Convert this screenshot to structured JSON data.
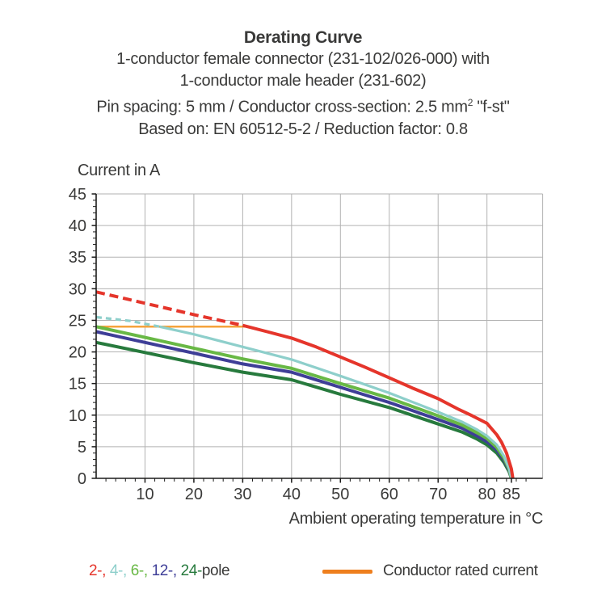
{
  "title": {
    "main": "Derating Curve",
    "line1": "1-conductor female connector (231-102/026-000) with",
    "line2": "1-conductor male header (231-602)",
    "line3_pre": "Pin spacing: 5 mm / Conductor cross-section: 2.5 mm",
    "line3_sup": "2",
    "line3_post": " \"f-st\"",
    "line4": "Based on: EN 60512-5-2 / Reduction factor: 0.8"
  },
  "legend": {
    "pole_segments": [
      {
        "name": "2-pole",
        "text": "2-,",
        "color": "#e5352b"
      },
      {
        "name": "4-pole",
        "text": "4-,",
        "color": "#8ecfcb"
      },
      {
        "name": "6-pole",
        "text": "6-,",
        "color": "#68b845"
      },
      {
        "name": "12-pole",
        "text": "12-,",
        "color": "#3e3e97"
      },
      {
        "name": "24-pole",
        "text": "24-",
        "color": "#277a3d"
      }
    ],
    "pole_suffix": "pole",
    "rated_label": "Conductor rated current",
    "rated_swatch_color": "#ee7f1e"
  },
  "colors": {
    "text": "#3a3a39",
    "grid": "#b2b2b2",
    "axis": "#1c1c1b"
  },
  "chart_data": {
    "type": "line",
    "title": "Derating Curve",
    "xlabel": "Ambient operating temperature in °C",
    "ylabel": "Current in A",
    "xlim": [
      0,
      91.4
    ],
    "ylim": [
      0,
      45
    ],
    "xticks_major": [
      10,
      20,
      30,
      40,
      50,
      60,
      70,
      80,
      85
    ],
    "yticks_major": [
      0,
      5,
      10,
      15,
      20,
      25,
      30,
      35,
      40,
      45
    ],
    "x_minor_step": 2,
    "y_minor_step": 1,
    "grid": true,
    "legend_position": "bottom",
    "series": [
      {
        "name": "conductor-rated-current",
        "color": "#f5a33c",
        "width": 2.5,
        "points": [
          [
            0,
            24
          ],
          [
            31,
            24
          ]
        ]
      },
      {
        "name": "24-pole",
        "color": "#277a3d",
        "width": 4,
        "points": [
          [
            0,
            21.5
          ],
          [
            10,
            19.9
          ],
          [
            20,
            18.3
          ],
          [
            30,
            16.8
          ],
          [
            40,
            15.6
          ],
          [
            50,
            13.3
          ],
          [
            60,
            11.2
          ],
          [
            70,
            8.6
          ],
          [
            75,
            7.3
          ],
          [
            78,
            6.2
          ],
          [
            80,
            5.3
          ],
          [
            82,
            4.0
          ],
          [
            83.5,
            2.5
          ],
          [
            84.5,
            1.1
          ],
          [
            85,
            0
          ]
        ]
      },
      {
        "name": "12-pole",
        "color": "#3e3e97",
        "width": 4,
        "points": [
          [
            0,
            23.2
          ],
          [
            10,
            21.5
          ],
          [
            20,
            19.8
          ],
          [
            30,
            18.1
          ],
          [
            40,
            16.8
          ],
          [
            50,
            14.4
          ],
          [
            60,
            12.0
          ],
          [
            70,
            9.3
          ],
          [
            75,
            7.9
          ],
          [
            78,
            6.7
          ],
          [
            80,
            5.8
          ],
          [
            82,
            4.5
          ],
          [
            83.5,
            2.9
          ],
          [
            84.5,
            1.3
          ],
          [
            85,
            0
          ]
        ]
      },
      {
        "name": "6-pole",
        "color": "#68b845",
        "width": 4,
        "points": [
          [
            0,
            24.0
          ],
          [
            10,
            22.3
          ],
          [
            20,
            20.6
          ],
          [
            30,
            18.9
          ],
          [
            40,
            17.4
          ],
          [
            50,
            15.0
          ],
          [
            60,
            12.7
          ],
          [
            70,
            9.9
          ],
          [
            75,
            8.4
          ],
          [
            78,
            7.2
          ],
          [
            80,
            6.3
          ],
          [
            82,
            4.9
          ],
          [
            83.5,
            3.2
          ],
          [
            84.5,
            1.5
          ],
          [
            85,
            0
          ]
        ]
      },
      {
        "name": "4-pole",
        "color": "#8ecfcb",
        "width": 3.2,
        "dashed_points": [
          [
            0,
            25.5
          ],
          [
            7,
            24.9
          ],
          [
            13,
            24.0
          ]
        ],
        "dash_pattern": "7 5",
        "points": [
          [
            13,
            24.0
          ],
          [
            20,
            22.8
          ],
          [
            30,
            20.8
          ],
          [
            40,
            18.8
          ],
          [
            50,
            16.2
          ],
          [
            60,
            13.5
          ],
          [
            70,
            10.5
          ],
          [
            75,
            8.9
          ],
          [
            78,
            7.7
          ],
          [
            80,
            6.7
          ],
          [
            82,
            5.3
          ],
          [
            83.5,
            3.5
          ],
          [
            84.5,
            1.6
          ],
          [
            85,
            0
          ]
        ]
      },
      {
        "name": "2-pole",
        "color": "#e5352b",
        "width": 4,
        "dashed_points": [
          [
            0,
            29.5
          ],
          [
            10,
            27.7
          ],
          [
            20,
            25.9
          ],
          [
            30,
            24.2
          ]
        ],
        "dash_pattern": "11 6",
        "points": [
          [
            30,
            24.2
          ],
          [
            35,
            23.2
          ],
          [
            40,
            22.2
          ],
          [
            45,
            20.8
          ],
          [
            50,
            19.2
          ],
          [
            55,
            17.6
          ],
          [
            60,
            15.9
          ],
          [
            65,
            14.2
          ],
          [
            70,
            12.6
          ],
          [
            74,
            11.0
          ],
          [
            77,
            9.9
          ],
          [
            80,
            8.7
          ],
          [
            82,
            6.9
          ],
          [
            83,
            5.7
          ],
          [
            84,
            4.0
          ],
          [
            85,
            1.5
          ],
          [
            85.3,
            0
          ]
        ]
      }
    ]
  }
}
